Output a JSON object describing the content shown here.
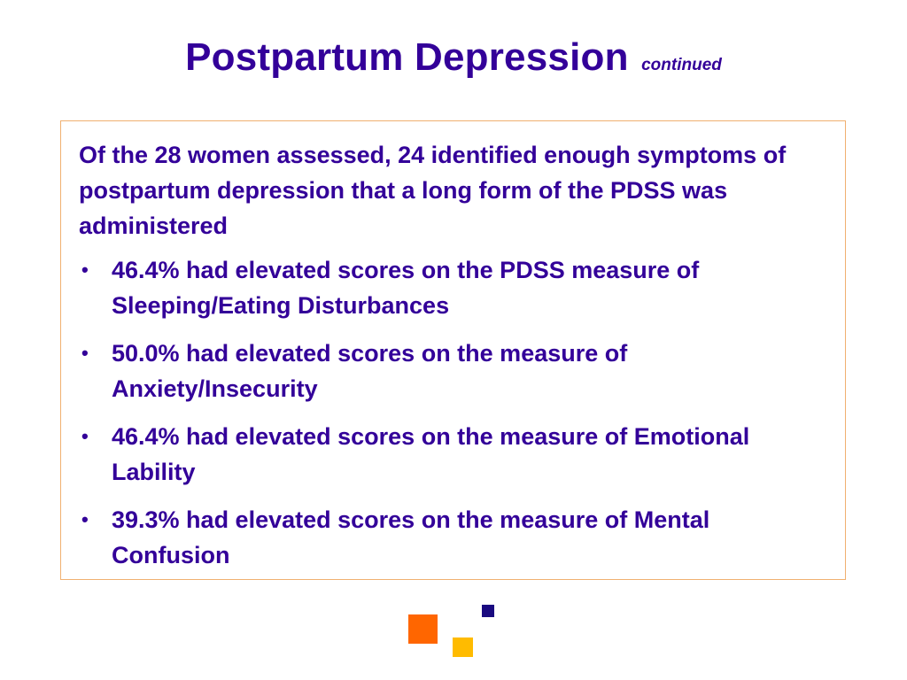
{
  "slide": {
    "title": "Postpartum Depression",
    "subtitle": "continued",
    "intro": "Of the 28 women assessed, 24 identified enough symptoms of postpartum depression that a long form of the PDSS was administered",
    "bullets": [
      {
        "text": "46.4% had elevated scores on the PDSS measure of Sleeping/Eating Disturbances"
      },
      {
        "text": "50.0% had elevated scores on the measure of Anxiety/Insecurity"
      },
      {
        "text": "46.4% had elevated scores on the measure of Emotional Lability"
      },
      {
        "text": "39.3% had elevated scores on the measure of Mental Confusion"
      }
    ],
    "bullet_symbol": "•"
  },
  "colors": {
    "text": "#330099",
    "box_border": "#f0b070",
    "square_orange": "#ff6600",
    "square_yellow": "#ffbb00",
    "square_navy": "#1a0a80"
  }
}
